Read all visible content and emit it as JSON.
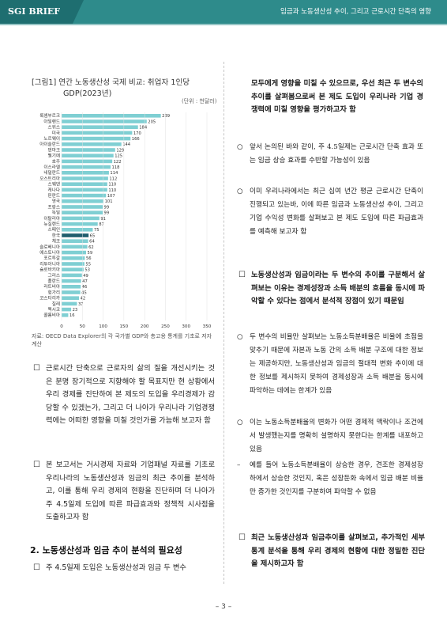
{
  "header": {
    "brand": "SGI BRIEF",
    "title": "임금과 노동생산성 추이, 그리고 근로시간 단축의 영향",
    "color": "#2e8b8b"
  },
  "figure": {
    "title_line1": "[그림1] 연간 노동생산성 국제 비교: 취업자 1인당",
    "title_line2": "GDP(2023년)",
    "unit": "(단위 : 천달러)",
    "note": "자료: OECD Data Explorer의 각 국가별 GDP와 총고용 통계를 기초로 저자 계산"
  },
  "chart_data": {
    "type": "bar",
    "orientation": "horizontal",
    "categories": [
      "룩셈부르크",
      "아일랜드",
      "스위스",
      "미국",
      "노르웨이",
      "아이슬란드",
      "덴마크",
      "벨기에",
      "호주",
      "이스라엘",
      "네덜란드",
      "오스트리아",
      "스웨덴",
      "캐나다",
      "핀란드",
      "영국",
      "프랑스",
      "독일",
      "이탈리아",
      "뉴질랜드",
      "스페인",
      "한국",
      "체코",
      "슬로베니아",
      "에스토니아",
      "포르투갈",
      "리투아니아",
      "슬로바키아",
      "그리스",
      "폴란드",
      "라트비아",
      "헝가리",
      "코스타리카",
      "칠레",
      "멕시코",
      "콜롬비아"
    ],
    "values": [
      239,
      205,
      184,
      170,
      166,
      144,
      129,
      125,
      122,
      118,
      114,
      112,
      110,
      110,
      107,
      101,
      99,
      99,
      91,
      87,
      75,
      65,
      64,
      62,
      59,
      56,
      55,
      53,
      49,
      47,
      46,
      45,
      42,
      37,
      23,
      16
    ],
    "highlight": "한국",
    "bar_color": "#7fcfd3",
    "highlight_color": "#1f5d6d",
    "xlim": [
      0,
      350
    ],
    "xticks": [
      0,
      50,
      100,
      150,
      200,
      250,
      300,
      350
    ]
  },
  "left": {
    "p1_box": "☐",
    "p1": "근로시간 단축으로 근로자의 삶의 질을 개선시키는 것은 분명 장기적으로 지향해야 할 목표지만 현 상황에서 우리 경제를 진단하여 본 제도의 도입을 우리경제가 감당할 수 있겠는가, 그리고 더 나아가 우리나라 기업경쟁력에는 어떠한 영향을 미칠 것인가를 가늠해 보고자 함",
    "p2_box": "☐",
    "p2": "본 보고서는 거시경제 자료와 기업패널 자료를 기초로 우리나라의 노동생산성과 임금의 최근 추이를 분석하고, 이를 통해 우리 경제의 현황을 진단하며 더 나아가 주 4.5일제 도입에 따른 파급효과와 정책적 시사점을 도출하고자 함",
    "section_title": "2. 노동생산성과 임금 추이 분석의 필요성",
    "p3_box": "☐",
    "p3": "주 4.5일제 도입은 노동생산성과 임금 두 변수"
  },
  "right": {
    "p0": "모두에게 영향을 미칠 수 있으므로, 우선 최근 두 변수의 추이를 살펴봄으로써 본 제도 도입이 우리나라 기업 경쟁력에 미칠 영향을 평가하고자 함",
    "o1_mark": "○",
    "o1": "앞서 논의된 바와 같이, 주 4.5일제는 근로시간 단축 효과 또는 임금 상승 효과를 수반할 가능성이 있음",
    "o2_mark": "○",
    "o2": "이미 우리나라에서는 최근 십여 년간 평균 근로시간 단축이 진행되고 있는바, 이에 따른 임금과 노동생산성 추이, 그리고 기업 수익성 변화를 살펴보고 본 제도 도입에 따른 파급효과를 예측해 보고자 함",
    "b1_box": "☐",
    "b1": "노동생산성과 임금이라는 두 변수의 추이를 구분해서 살펴보는 이유는 경제성장과 소득 배분의 흐름을 동시에 파악할 수 있다는 점에서 분석적 장점이 있기 때문임",
    "o3_mark": "○",
    "o3": "두 변수의 비율만 살펴보는 노동소득분배율은 비율에 초점을 맞추기 때문에 자본과 노동 간의 소득 배분 구조에 대한 정보는 제공하지만, 노동생산성과 임금의 절대적 변화 추이에 대한 정보를 제시하지 못하여 경제성장과 소득 배분을 동시에 파악하는 데에는 한계가 있음",
    "o4_mark": "○",
    "o4": "이는 노동소득분배율의 변화가 어떤 경제적 맥락이나 조건에서 발생했는지를 명확히 설명하지 못한다는 한계를 내포하고 있음",
    "d1_mark": "–",
    "d1": "예를 들어 노동소득분배율이 상승한 경우, 견조한 경제성장 하에서 상승한 것인지, 혹은 성장둔화 속에서 임금 배분 비율만 증가한 것인지를 구분하여 파악할 수 없음",
    "b2_box": "☐",
    "b2": "최근 노동생산성과 임금추이를 살펴보고, 추가적인 세부 통계 분석을 통해 우리 경제의 현황에 대한 정밀한 진단을 제시하고자 함"
  },
  "page_number": "– 3 –"
}
